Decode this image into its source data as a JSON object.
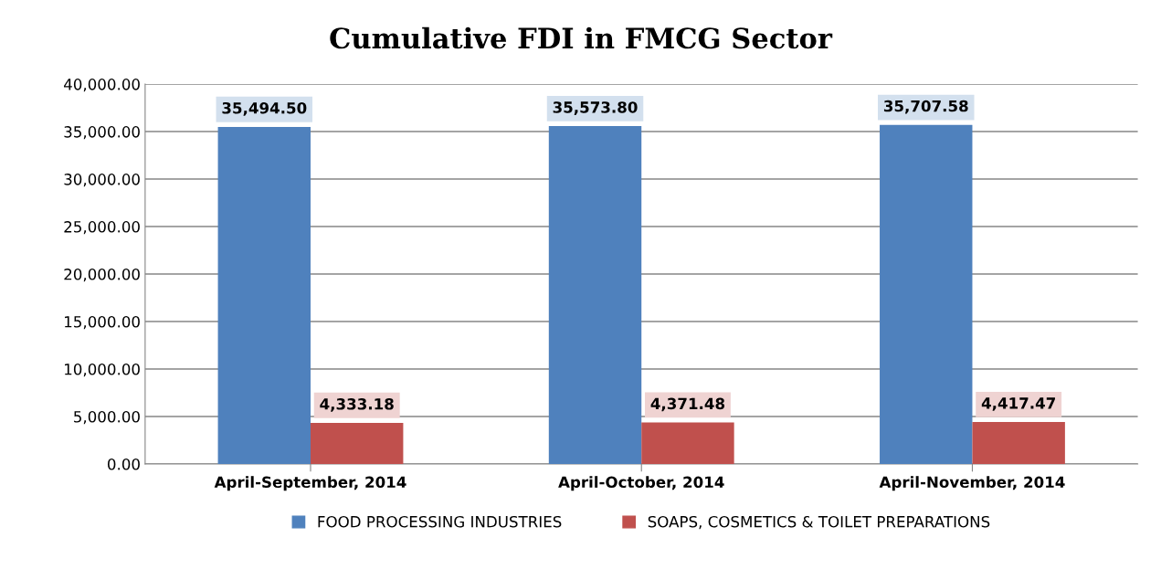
{
  "chart_data": {
    "type": "bar",
    "title": "Cumulative FDI in FMCG Sector",
    "categories": [
      "April-September, 2014",
      "April-October, 2014",
      "April-November, 2014"
    ],
    "series": [
      {
        "name": "FOOD PROCESSING INDUSTRIES",
        "color": "#4f81bd",
        "values": [
          35494.5,
          35573.8,
          35707.58
        ],
        "value_labels": [
          "35,494.50",
          "35,573.80",
          "35,707.58"
        ]
      },
      {
        "name": "SOAPS, COSMETICS & TOILET PREPARATIONS",
        "color": "#c0504d",
        "values": [
          4333.18,
          4371.48,
          4417.47
        ],
        "value_labels": [
          "4,333.18",
          "4,371.48",
          "4,417.47"
        ]
      }
    ],
    "ylim": [
      0,
      40000
    ],
    "yticks": [
      {
        "value": 0,
        "label": "0.00"
      },
      {
        "value": 5000,
        "label": "5,000.00"
      },
      {
        "value": 10000,
        "label": "10,000.00"
      },
      {
        "value": 15000,
        "label": "15,000.00"
      },
      {
        "value": 20000,
        "label": "20,000.00"
      },
      {
        "value": 25000,
        "label": "25,000.00"
      },
      {
        "value": 30000,
        "label": "30,000.00"
      },
      {
        "value": 35000,
        "label": "35,000.00"
      },
      {
        "value": 40000,
        "label": "40,000.00"
      }
    ],
    "grid": "y",
    "legend": "bottom"
  }
}
